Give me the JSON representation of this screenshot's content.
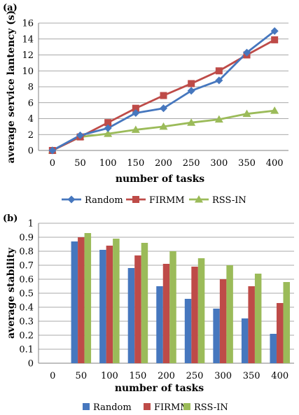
{
  "panels": [
    {
      "label": "(a)"
    },
    {
      "label": "(b)"
    }
  ],
  "colors": {
    "Random": "#4677BE",
    "FIRMM": "#BE4B48",
    "RSS-IN": "#9BBB59",
    "grid": "#8C8C8C",
    "axis": "#808080"
  },
  "chart_data": [
    {
      "type": "line",
      "xlabel": "number of tasks",
      "ylabel": "average service lantency (s)",
      "categories": [
        "0",
        "50",
        "100",
        "150",
        "200",
        "250",
        "300",
        "350",
        "400"
      ],
      "ylim": [
        0,
        16
      ],
      "yticks": [
        "0",
        "2",
        "4",
        "6",
        "8",
        "10",
        "12",
        "14",
        "16"
      ],
      "grid": true,
      "legend_position": "bottom",
      "series": [
        {
          "name": "Random",
          "marker": "diamond",
          "values": [
            0,
            1.9,
            2.8,
            4.7,
            5.3,
            7.5,
            8.8,
            12.3,
            15.0
          ]
        },
        {
          "name": "FIRMM",
          "marker": "square",
          "values": [
            0,
            1.7,
            3.5,
            5.3,
            6.9,
            8.4,
            10.0,
            12.0,
            13.9
          ]
        },
        {
          "name": "RSS-IN",
          "marker": "triangle",
          "values": [
            0,
            1.7,
            2.1,
            2.6,
            3.0,
            3.5,
            3.9,
            4.6,
            5.0
          ]
        }
      ]
    },
    {
      "type": "bar",
      "xlabel": "number of tasks",
      "ylabel": "average stability",
      "categories": [
        "0",
        "50",
        "100",
        "150",
        "200",
        "250",
        "300",
        "350",
        "400"
      ],
      "ylim": [
        0,
        1
      ],
      "yticks": [
        "0",
        "0.1",
        "0.2",
        "0.3",
        "0.4",
        "0.5",
        "0.6",
        "0.7",
        "0.8",
        "0.9",
        "1"
      ],
      "grid": true,
      "legend_position": "bottom",
      "series": [
        {
          "name": "Random",
          "values": [
            0,
            0.87,
            0.81,
            0.68,
            0.55,
            0.46,
            0.39,
            0.32,
            0.21
          ]
        },
        {
          "name": "FIRMM",
          "values": [
            0,
            0.9,
            0.84,
            0.77,
            0.71,
            0.69,
            0.6,
            0.55,
            0.43
          ]
        },
        {
          "name": "RSS-IN",
          "values": [
            0,
            0.93,
            0.89,
            0.86,
            0.8,
            0.75,
            0.7,
            0.64,
            0.58
          ]
        }
      ]
    }
  ]
}
